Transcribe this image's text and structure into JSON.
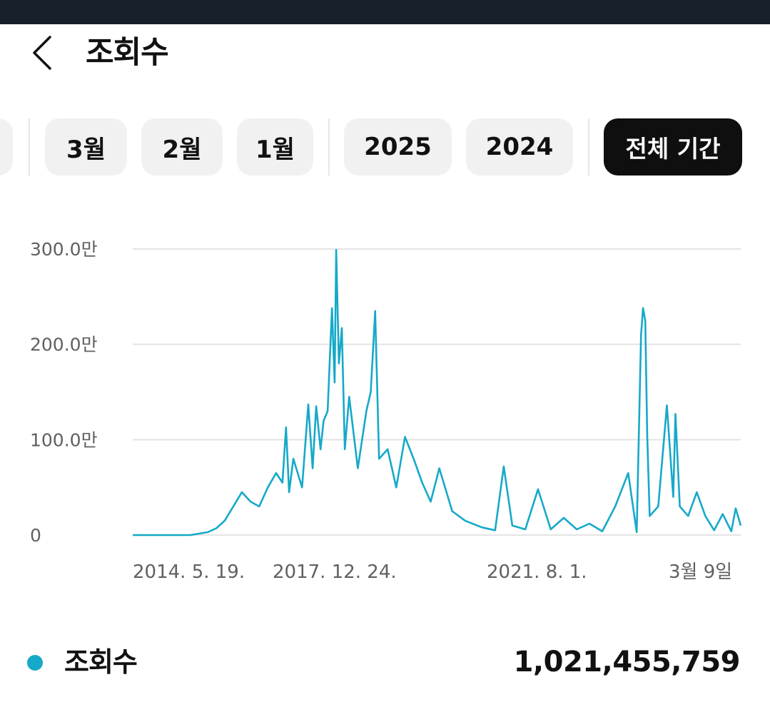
{
  "header": {
    "title": "조회수"
  },
  "filters": [
    {
      "label": "3월",
      "active": false
    },
    {
      "label": "2월",
      "active": false
    },
    {
      "label": "1월",
      "active": false
    },
    {
      "label": "2025",
      "active": false
    },
    {
      "label": "2024",
      "active": false
    },
    {
      "label": "전체 기간",
      "active": true
    }
  ],
  "colors": {
    "series": "#16a9c9",
    "active_chip": "#0f0f0f",
    "chip": "#f1f1f1"
  },
  "chart_data": {
    "type": "line",
    "title": "",
    "xlabel": "",
    "ylabel": "",
    "x_tick_labels": [
      "2014. 5. 19.",
      "2017. 12. 24.",
      "2021. 8. 1.",
      "3월 9일"
    ],
    "y_ticks": [
      {
        "value": 0,
        "label": "0"
      },
      {
        "value": 1000000,
        "label": "100.0만"
      },
      {
        "value": 2000000,
        "label": "200.0만"
      },
      {
        "value": 3000000,
        "label": "300.0만"
      }
    ],
    "ylim": [
      0,
      3000000
    ],
    "grid": true,
    "series": [
      {
        "name": "조회수",
        "points": [
          [
            "2014-05-19",
            0
          ],
          [
            "2015-07-01",
            0
          ],
          [
            "2015-11-01",
            30000
          ],
          [
            "2016-01-01",
            70000
          ],
          [
            "2016-03-01",
            150000
          ],
          [
            "2016-05-01",
            300000
          ],
          [
            "2016-07-01",
            450000
          ],
          [
            "2016-09-01",
            350000
          ],
          [
            "2016-11-01",
            300000
          ],
          [
            "2017-01-01",
            500000
          ],
          [
            "2017-03-01",
            650000
          ],
          [
            "2017-04-15",
            550000
          ],
          [
            "2017-05-10",
            1130000
          ],
          [
            "2017-06-01",
            450000
          ],
          [
            "2017-07-01",
            800000
          ],
          [
            "2017-09-01",
            500000
          ],
          [
            "2017-10-15",
            1370000
          ],
          [
            "2017-11-15",
            700000
          ],
          [
            "2017-12-10",
            1350000
          ],
          [
            "2018-01-10",
            900000
          ],
          [
            "2018-02-01",
            1200000
          ],
          [
            "2018-03-01",
            1300000
          ],
          [
            "2018-04-01",
            2380000
          ],
          [
            "2018-04-20",
            1600000
          ],
          [
            "2018-05-01",
            2990000
          ],
          [
            "2018-05-20",
            1800000
          ],
          [
            "2018-06-10",
            2170000
          ],
          [
            "2018-07-01",
            900000
          ],
          [
            "2018-08-01",
            1450000
          ],
          [
            "2018-10-01",
            700000
          ],
          [
            "2018-12-01",
            1300000
          ],
          [
            "2019-01-01",
            1500000
          ],
          [
            "2019-02-01",
            2350000
          ],
          [
            "2019-03-01",
            800000
          ],
          [
            "2019-05-01",
            900000
          ],
          [
            "2019-07-01",
            500000
          ],
          [
            "2019-09-01",
            1030000
          ],
          [
            "2019-11-01",
            800000
          ],
          [
            "2020-01-01",
            550000
          ],
          [
            "2020-03-01",
            350000
          ],
          [
            "2020-05-01",
            700000
          ],
          [
            "2020-08-01",
            250000
          ],
          [
            "2020-11-01",
            150000
          ],
          [
            "2021-03-01",
            80000
          ],
          [
            "2021-06-01",
            50000
          ],
          [
            "2021-08-01",
            720000
          ],
          [
            "2021-10-01",
            100000
          ],
          [
            "2022-01-01",
            60000
          ],
          [
            "2022-04-01",
            480000
          ],
          [
            "2022-07-01",
            60000
          ],
          [
            "2022-10-01",
            180000
          ],
          [
            "2023-01-01",
            60000
          ],
          [
            "2023-04-01",
            120000
          ],
          [
            "2023-07-01",
            40000
          ],
          [
            "2023-10-01",
            300000
          ],
          [
            "2024-01-01",
            650000
          ],
          [
            "2024-03-01",
            30000
          ],
          [
            "2024-04-01",
            2100000
          ],
          [
            "2024-04-15",
            2380000
          ],
          [
            "2024-05-01",
            2250000
          ],
          [
            "2024-05-15",
            1030000
          ],
          [
            "2024-06-01",
            200000
          ],
          [
            "2024-08-01",
            300000
          ],
          [
            "2024-10-01",
            1360000
          ],
          [
            "2024-11-15",
            400000
          ],
          [
            "2024-12-01",
            1270000
          ],
          [
            "2025-01-01",
            300000
          ],
          [
            "2025-03-01",
            200000
          ],
          [
            "2025-05-01",
            450000
          ],
          [
            "2025-07-01",
            200000
          ],
          [
            "2025-09-01",
            50000
          ],
          [
            "2025-11-01",
            220000
          ],
          [
            "2026-01-01",
            40000
          ],
          [
            "2026-02-01",
            280000
          ],
          [
            "2026-03-09",
            100000
          ]
        ]
      }
    ]
  },
  "legend": {
    "label": "조회수",
    "total": "1,021,455,759"
  }
}
